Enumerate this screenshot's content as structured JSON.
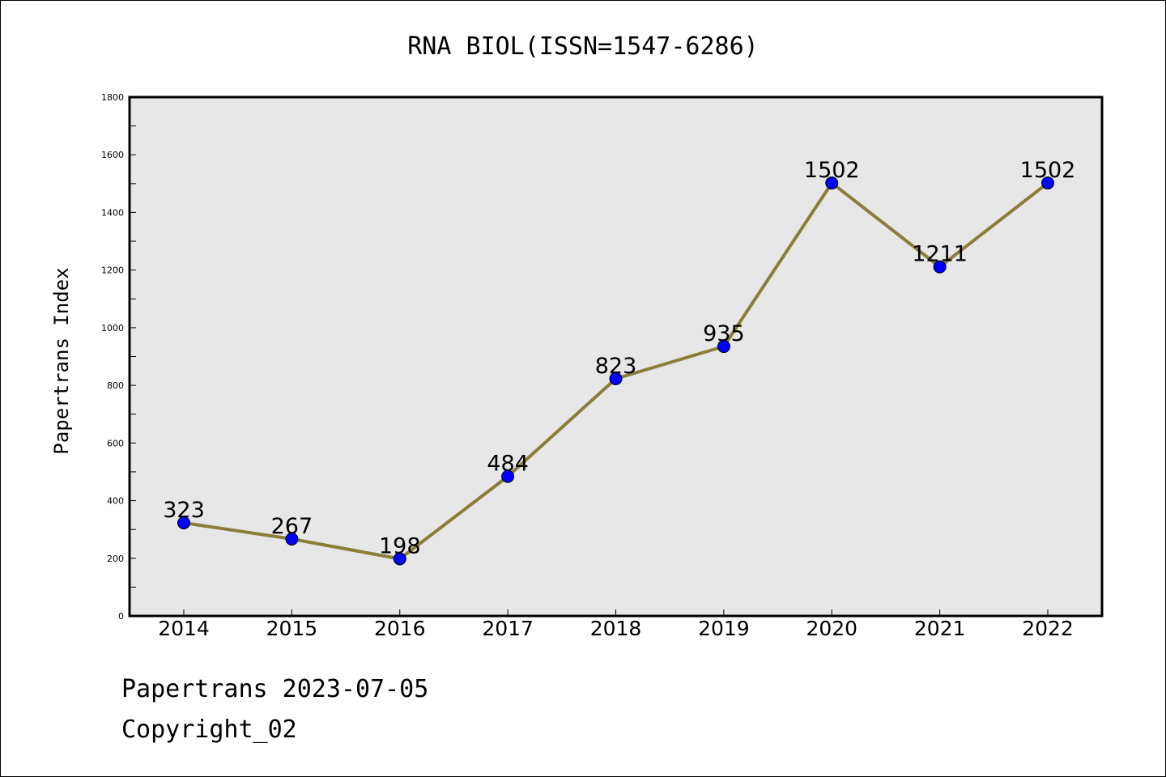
{
  "chart_data": {
    "type": "line",
    "title": "RNA BIOL(ISSN=1547-6286)",
    "ylabel": "Papertrans Index",
    "xlabel": "",
    "categories": [
      "2014",
      "2015",
      "2016",
      "2017",
      "2018",
      "2019",
      "2020",
      "2021",
      "2022"
    ],
    "series": [
      {
        "values": [
          323,
          267,
          198,
          484,
          823,
          935,
          1502,
          1211,
          1502
        ]
      }
    ],
    "ylim": [
      0,
      1800
    ],
    "yticks": [
      0,
      200,
      400,
      600,
      800,
      1000,
      1200,
      1400,
      1600,
      1800
    ],
    "grid": false,
    "data_labels": true,
    "colors": {
      "line": "#8B7D3A",
      "marker": "#0000FF",
      "plot_bg": "#E7E7E7"
    }
  },
  "footer": {
    "line1": "Papertrans 2023-07-05",
    "line2": "Copyright_02"
  }
}
